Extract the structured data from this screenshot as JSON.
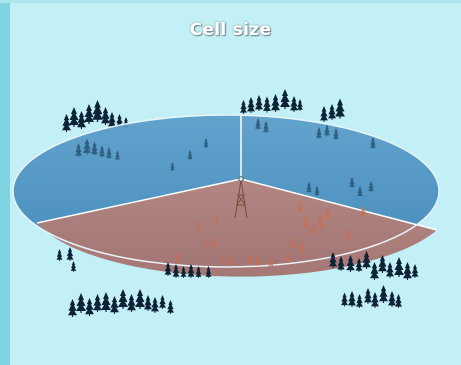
{
  "title": "Cell size",
  "colors": {
    "background": "#c3f0f7",
    "sector_blue": "#4a8fbf",
    "sector_red": "#b07f7c",
    "trees": "#0d2235",
    "tower": "#7a4a3a"
  },
  "icons": [
    "tree-cluster-icon",
    "antenna-tower-icon"
  ]
}
